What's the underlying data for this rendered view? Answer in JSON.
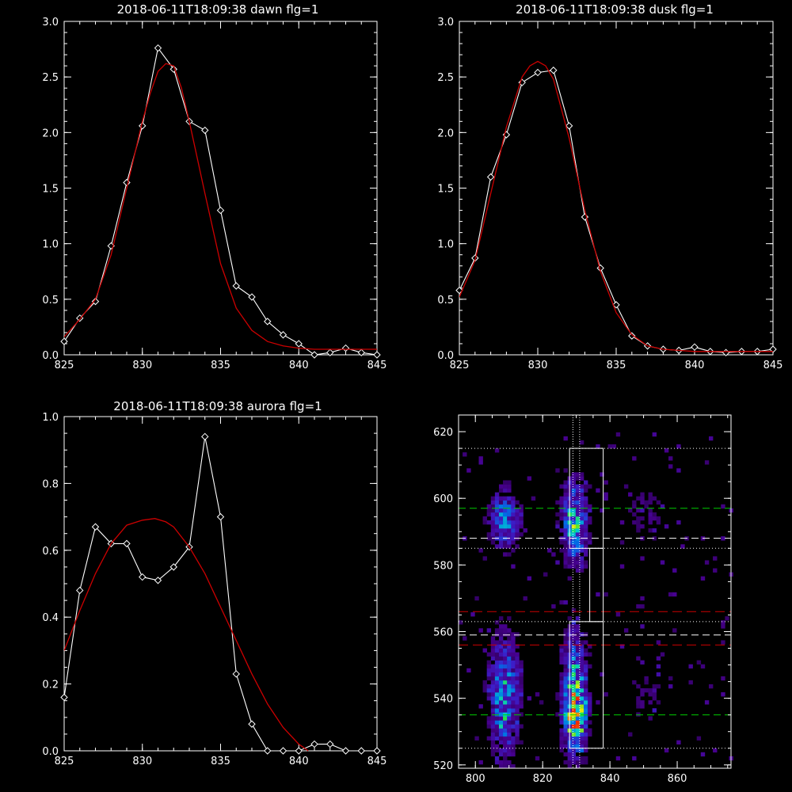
{
  "colors": {
    "background": "#000000",
    "axis": "#ffffff",
    "data_line": "#ffffff",
    "fit_line": "#cc0000",
    "marker": "#ffffff",
    "guide_green": "#00cc00",
    "guide_red": "#cc0000",
    "guide_white": "#ffffff"
  },
  "chart_data": [
    {
      "type": "line",
      "title": "2018-06-11T18:09:38 dawn flg=1",
      "xlim": [
        825,
        845
      ],
      "ylim": [
        0,
        3.0
      ],
      "xticks": [
        825,
        830,
        835,
        840,
        845
      ],
      "xtick_labels": [
        "825",
        "830",
        "835",
        "840",
        "845"
      ],
      "yticks": [
        0,
        0.5,
        1.0,
        1.5,
        2.0,
        2.5,
        3.0
      ],
      "ytick_labels": [
        "0.0",
        "0.5",
        "1.0",
        "1.5",
        "2.0",
        "2.5",
        "3.0"
      ],
      "series": [
        {
          "style": "data",
          "x": [
            825,
            826,
            827,
            828,
            829,
            830,
            831,
            832,
            833,
            834,
            835,
            836,
            837,
            838,
            839,
            840,
            841,
            842,
            843,
            844,
            845
          ],
          "y": [
            0.12,
            0.33,
            0.48,
            0.98,
            1.55,
            2.06,
            2.76,
            2.57,
            2.1,
            2.02,
            1.3,
            0.62,
            0.52,
            0.3,
            0.18,
            0.1,
            0.0,
            0.02,
            0.06,
            0.02,
            0.0
          ]
        },
        {
          "style": "fit",
          "x": [
            825,
            826,
            827,
            828,
            829,
            830,
            830.5,
            831,
            831.5,
            832,
            832.5,
            833,
            834,
            835,
            836,
            837,
            838,
            839,
            840,
            841,
            842,
            843,
            844,
            845
          ],
          "y": [
            0.16,
            0.32,
            0.5,
            0.9,
            1.5,
            2.1,
            2.35,
            2.55,
            2.62,
            2.6,
            2.4,
            2.1,
            1.45,
            0.82,
            0.42,
            0.22,
            0.12,
            0.08,
            0.06,
            0.05,
            0.05,
            0.05,
            0.05,
            0.05
          ]
        }
      ]
    },
    {
      "type": "line",
      "title": "2018-06-11T18:09:38 dusk flg=1",
      "xlim": [
        825,
        845
      ],
      "ylim": [
        0,
        3.0
      ],
      "xticks": [
        825,
        830,
        835,
        840,
        845
      ],
      "xtick_labels": [
        "825",
        "830",
        "835",
        "840",
        "845"
      ],
      "yticks": [
        0,
        0.5,
        1.0,
        1.5,
        2.0,
        2.5,
        3.0
      ],
      "ytick_labels": [
        "0.0",
        "0.5",
        "1.0",
        "1.5",
        "2.0",
        "2.5",
        "3.0"
      ],
      "series": [
        {
          "style": "data",
          "x": [
            825,
            826,
            827,
            828,
            829,
            830,
            831,
            832,
            833,
            834,
            835,
            836,
            837,
            838,
            839,
            840,
            841,
            842,
            843,
            844,
            845
          ],
          "y": [
            0.58,
            0.87,
            1.6,
            1.98,
            2.45,
            2.54,
            2.56,
            2.06,
            1.24,
            0.78,
            0.45,
            0.17,
            0.08,
            0.05,
            0.04,
            0.07,
            0.03,
            0.02,
            0.03,
            0.03,
            0.05
          ]
        },
        {
          "style": "fit",
          "x": [
            825,
            826,
            827,
            828,
            829,
            829.5,
            830,
            830.5,
            831,
            832,
            833,
            834,
            835,
            836,
            837,
            838,
            839,
            840,
            841,
            842,
            843,
            844,
            845
          ],
          "y": [
            0.52,
            0.85,
            1.45,
            2.05,
            2.5,
            2.6,
            2.64,
            2.6,
            2.48,
            1.95,
            1.3,
            0.75,
            0.38,
            0.18,
            0.08,
            0.05,
            0.04,
            0.03,
            0.03,
            0.03,
            0.03,
            0.03,
            0.03
          ]
        }
      ]
    },
    {
      "type": "line",
      "title": "2018-06-11T18:09:38 aurora flg=1",
      "xlim": [
        825,
        845
      ],
      "ylim": [
        0,
        1.0
      ],
      "xticks": [
        825,
        830,
        835,
        840,
        845
      ],
      "xtick_labels": [
        "825",
        "830",
        "835",
        "840",
        "845"
      ],
      "yticks": [
        0,
        0.2,
        0.4,
        0.6,
        0.8,
        1.0
      ],
      "ytick_labels": [
        "0.0",
        "0.2",
        "0.4",
        "0.6",
        "0.8",
        "1.0"
      ],
      "series": [
        {
          "style": "data",
          "x": [
            825,
            826,
            827,
            828,
            829,
            830,
            831,
            832,
            833,
            834,
            835,
            836,
            837,
            838,
            839,
            840,
            841,
            842,
            843,
            844,
            845
          ],
          "y": [
            0.16,
            0.48,
            0.67,
            0.62,
            0.62,
            0.52,
            0.51,
            0.55,
            0.61,
            0.94,
            0.7,
            0.23,
            0.08,
            0.0,
            0.0,
            0.0,
            0.02,
            0.02,
            0.0,
            0.0,
            0.0
          ]
        },
        {
          "style": "fit",
          "x": [
            825,
            826,
            827,
            828,
            829,
            830,
            830.8,
            831.5,
            832,
            833,
            834,
            835,
            836,
            837,
            838,
            839,
            840,
            840.6
          ],
          "y": [
            0.3,
            0.42,
            0.53,
            0.62,
            0.675,
            0.69,
            0.695,
            0.685,
            0.67,
            0.61,
            0.53,
            0.43,
            0.33,
            0.23,
            0.14,
            0.07,
            0.02,
            0.0
          ]
        }
      ]
    },
    {
      "type": "heatmap",
      "title": "",
      "xlim": [
        795,
        876
      ],
      "ylim": [
        519,
        625
      ],
      "xticks": [
        800,
        820,
        840,
        860
      ],
      "xtick_labels": [
        "800",
        "820",
        "840",
        "860"
      ],
      "yticks": [
        520,
        540,
        560,
        580,
        600,
        620
      ],
      "ytick_labels": [
        "520",
        "540",
        "560",
        "580",
        "600",
        "620"
      ],
      "blobs": [
        {
          "xc": 808,
          "yc": 593,
          "xw": 3,
          "yw": 6,
          "amp": 0.45
        },
        {
          "xc": 829,
          "yc": 592,
          "xw": 2.5,
          "yw": 8,
          "amp": 0.6
        },
        {
          "xc": 829,
          "yc": 540,
          "xw": 2.5,
          "yw": 12,
          "amp": 0.65
        },
        {
          "xc": 829,
          "yc": 533,
          "xw": 2,
          "yw": 4,
          "amp": 0.35
        },
        {
          "xc": 808,
          "yc": 540,
          "xw": 3,
          "yw": 12,
          "amp": 0.5
        },
        {
          "xc": 850,
          "yc": 595,
          "xw": 5,
          "yw": 6,
          "amp": 0.12
        },
        {
          "xc": 850,
          "yc": 540,
          "xw": 5,
          "yw": 10,
          "amp": 0.1
        }
      ],
      "lines": {
        "vertical_dotted_x": [
          829,
          831
        ],
        "dotted_y": [
          615,
          585,
          563,
          525
        ],
        "green_dashed_y": [
          597,
          535
        ],
        "white_dashed_y": [
          588,
          559
        ],
        "red_dashed_y": [
          566,
          556
        ]
      },
      "boxes": [
        {
          "x0": 828,
          "x1": 838,
          "y0": 585,
          "y1": 615
        },
        {
          "x0": 834,
          "x1": 838,
          "y0": 563,
          "y1": 585
        },
        {
          "x0": 828,
          "x1": 838,
          "y0": 525,
          "y1": 563
        }
      ]
    }
  ]
}
